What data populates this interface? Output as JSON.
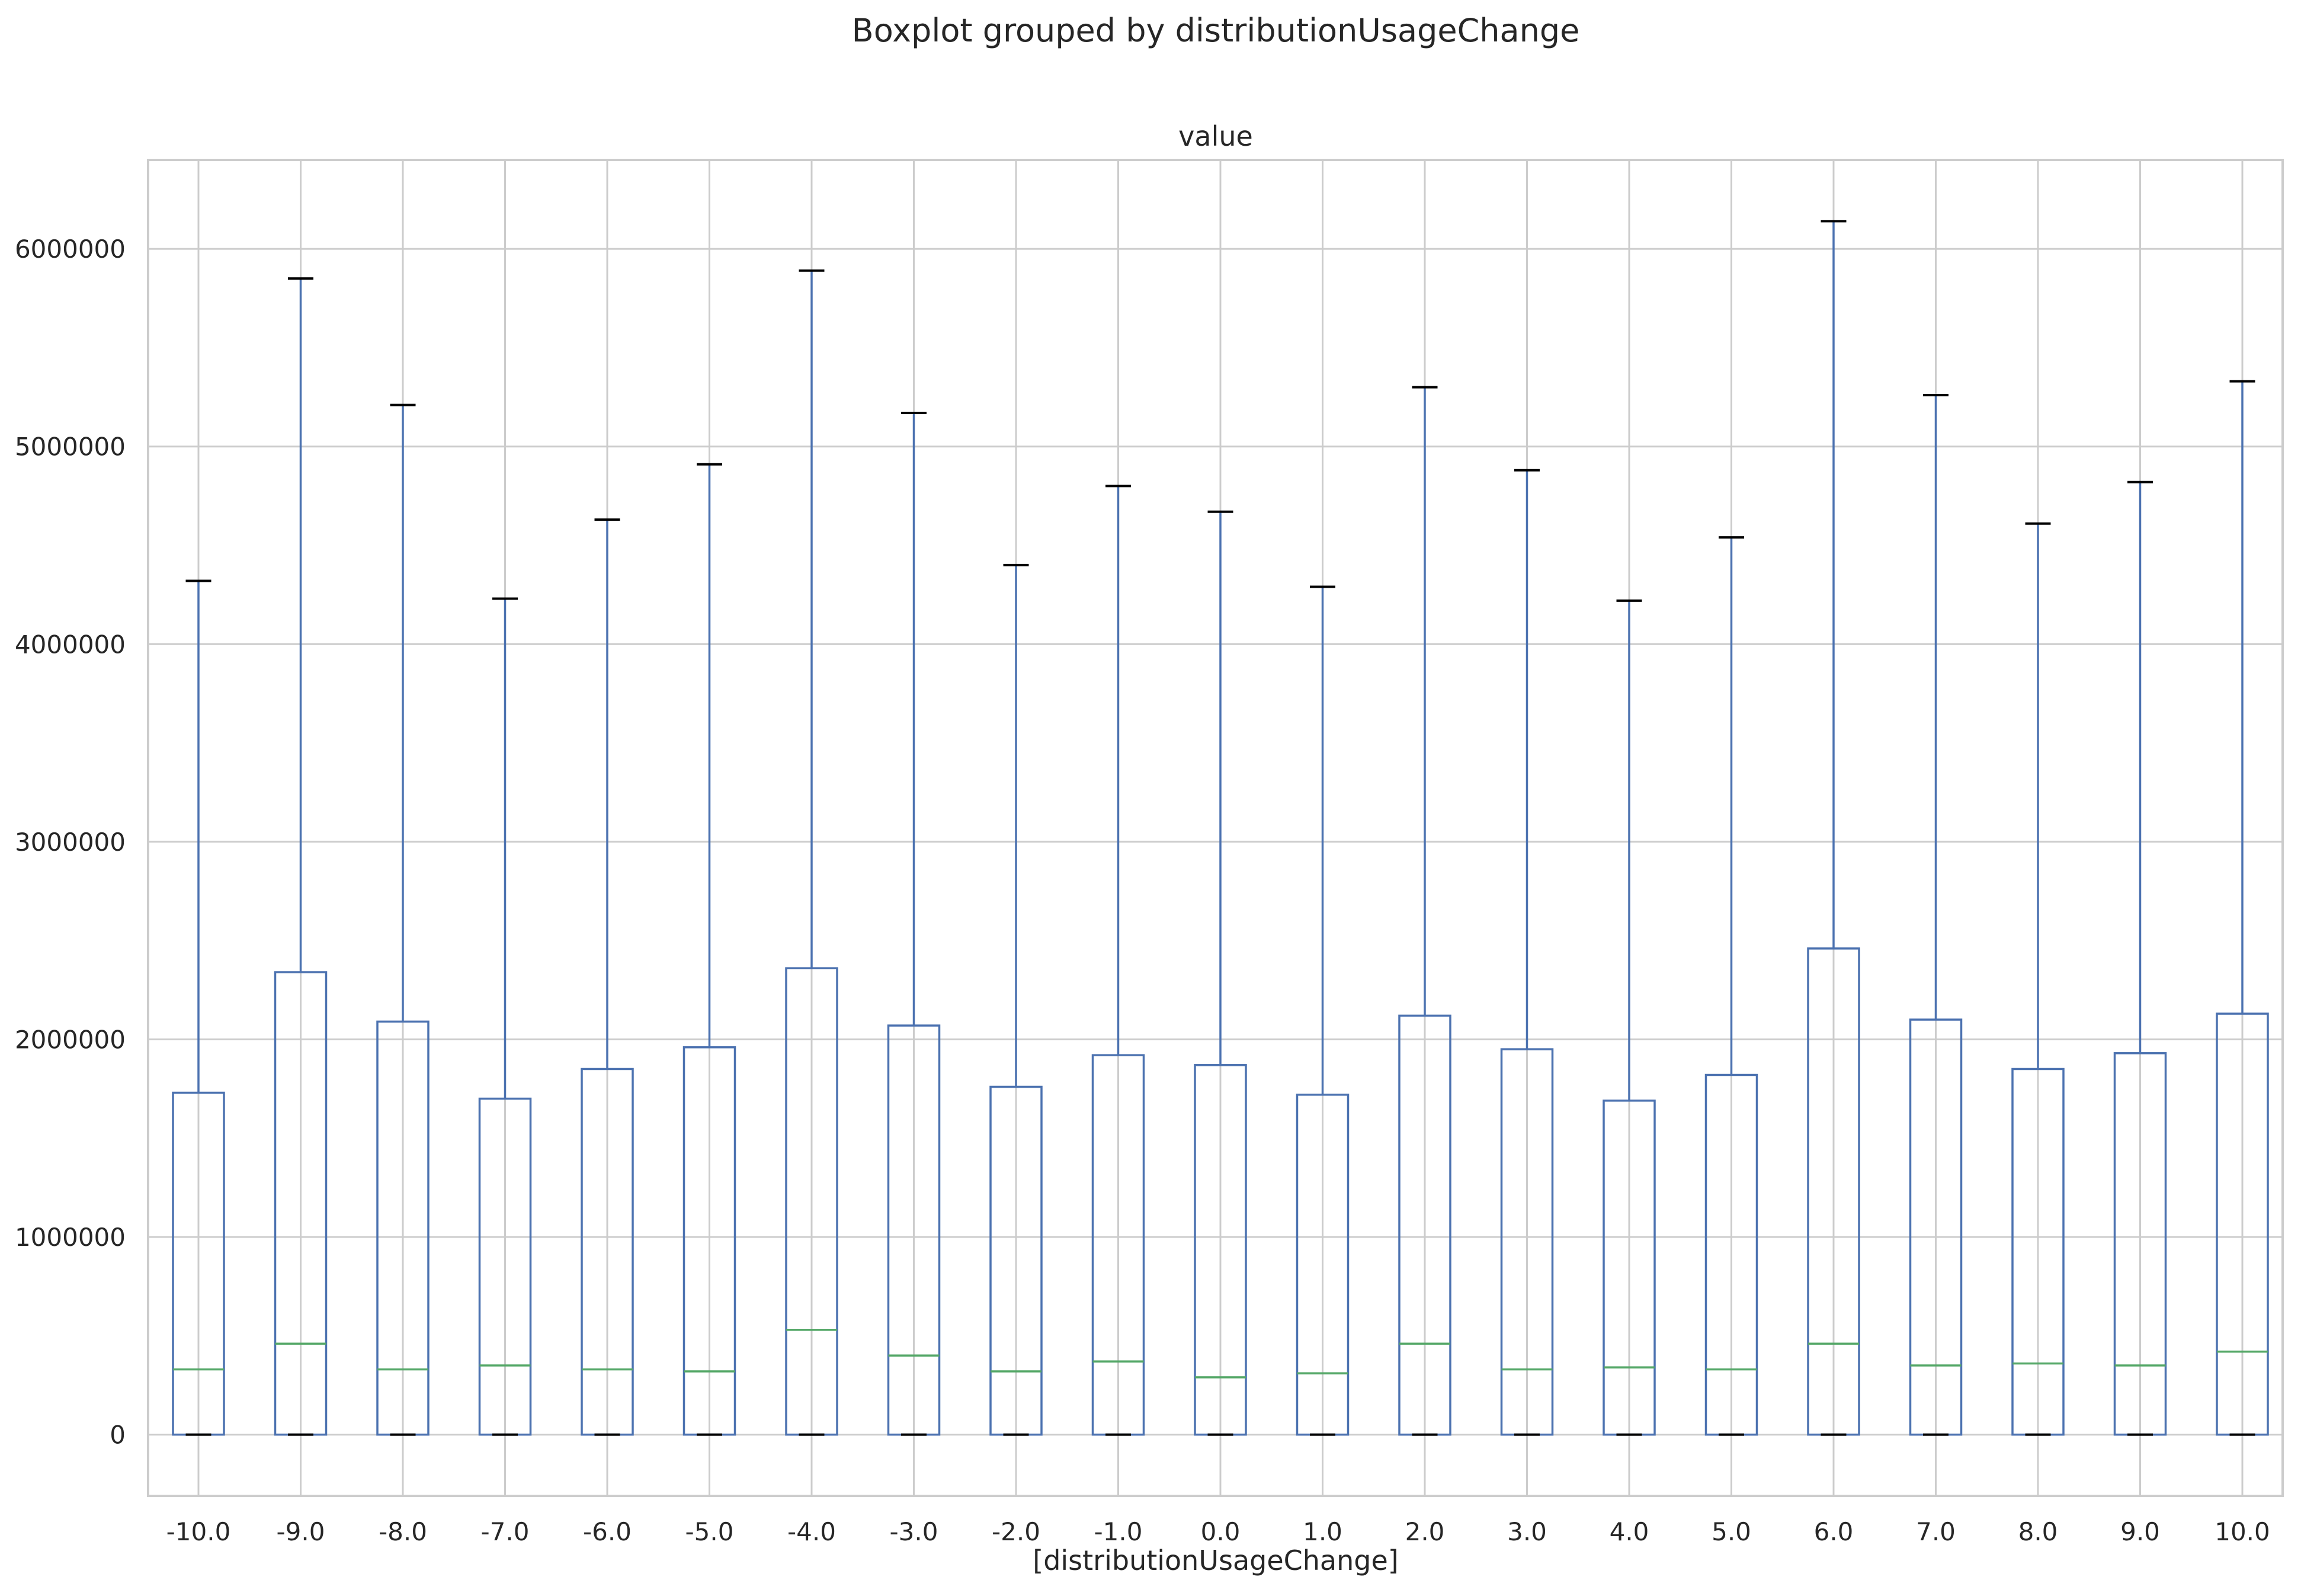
{
  "chart_data": {
    "type": "box",
    "title": "Boxplot grouped by distributionUsageChange",
    "subtitle": "value",
    "xlabel": "[distributionUsageChange]",
    "ylabel": "",
    "ylim": [
      -310000,
      6450000
    ],
    "yticks": [
      0,
      1000000,
      2000000,
      3000000,
      4000000,
      5000000,
      6000000
    ],
    "ytick_labels": [
      "0",
      "1000000",
      "2000000",
      "3000000",
      "4000000",
      "5000000",
      "6000000"
    ],
    "grid": true,
    "colors": {
      "box": "#4C72B0",
      "median": "#55A868",
      "cap": "#000000",
      "grid": "#cccccc",
      "axes_edge": "#cccccc",
      "text": "#262626"
    },
    "categories": [
      "-10.0",
      "-9.0",
      "-8.0",
      "-7.0",
      "-6.0",
      "-5.0",
      "-4.0",
      "-3.0",
      "-2.0",
      "-1.0",
      "0.0",
      "1.0",
      "2.0",
      "3.0",
      "4.0",
      "5.0",
      "6.0",
      "7.0",
      "8.0",
      "9.0",
      "10.0"
    ],
    "boxes": [
      {
        "min": 0,
        "q1": 0,
        "median": 330000,
        "q3": 1730000,
        "max": 4320000
      },
      {
        "min": 0,
        "q1": 0,
        "median": 460000,
        "q3": 2340000,
        "max": 5850000
      },
      {
        "min": 0,
        "q1": 0,
        "median": 330000,
        "q3": 2090000,
        "max": 5210000
      },
      {
        "min": 0,
        "q1": 0,
        "median": 350000,
        "q3": 1700000,
        "max": 4230000
      },
      {
        "min": 0,
        "q1": 0,
        "median": 330000,
        "q3": 1850000,
        "max": 4630000
      },
      {
        "min": 0,
        "q1": 0,
        "median": 320000,
        "q3": 1960000,
        "max": 4910000
      },
      {
        "min": 0,
        "q1": 0,
        "median": 530000,
        "q3": 2360000,
        "max": 5890000
      },
      {
        "min": 0,
        "q1": 0,
        "median": 400000,
        "q3": 2070000,
        "max": 5170000
      },
      {
        "min": 0,
        "q1": 0,
        "median": 320000,
        "q3": 1760000,
        "max": 4400000
      },
      {
        "min": 0,
        "q1": 0,
        "median": 370000,
        "q3": 1920000,
        "max": 4800000
      },
      {
        "min": 0,
        "q1": 0,
        "median": 290000,
        "q3": 1870000,
        "max": 4670000
      },
      {
        "min": 0,
        "q1": 0,
        "median": 310000,
        "q3": 1720000,
        "max": 4290000
      },
      {
        "min": 0,
        "q1": 0,
        "median": 460000,
        "q3": 2120000,
        "max": 5300000
      },
      {
        "min": 0,
        "q1": 0,
        "median": 330000,
        "q3": 1950000,
        "max": 4880000
      },
      {
        "min": 0,
        "q1": 0,
        "median": 340000,
        "q3": 1690000,
        "max": 4220000
      },
      {
        "min": 0,
        "q1": 0,
        "median": 330000,
        "q3": 1820000,
        "max": 4540000
      },
      {
        "min": 0,
        "q1": 0,
        "median": 460000,
        "q3": 2460000,
        "max": 6140000
      },
      {
        "min": 0,
        "q1": 0,
        "median": 350000,
        "q3": 2100000,
        "max": 5260000
      },
      {
        "min": 0,
        "q1": 0,
        "median": 360000,
        "q3": 1850000,
        "max": 4610000
      },
      {
        "min": 0,
        "q1": 0,
        "median": 350000,
        "q3": 1930000,
        "max": 4820000
      },
      {
        "min": 0,
        "q1": 0,
        "median": 420000,
        "q3": 2130000,
        "max": 5330000
      }
    ]
  }
}
